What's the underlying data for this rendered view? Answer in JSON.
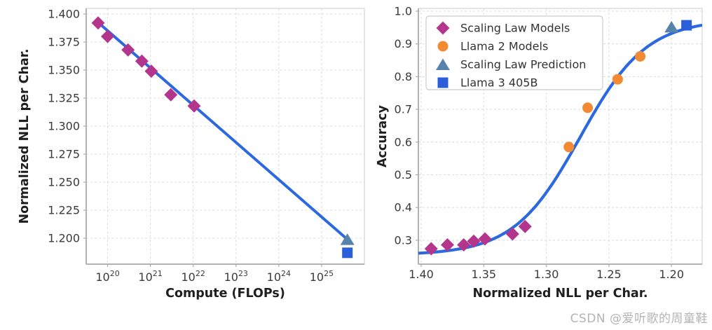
{
  "watermark": "CSDN @爱听歌的周童鞋",
  "colors": {
    "scaling_law_models": "#b3368c",
    "llama2_models": "#f18a33",
    "scaling_law_prediction": "#5782ab",
    "llama3_405b": "#2b5fd9",
    "fit_line": "#2c68df",
    "grid": "#dedede",
    "spine": "#aaaaaa",
    "border": "#d4d4d4",
    "tick_text": "#3a3a3a",
    "axis_label_text": "#1f1f1f",
    "legend_text": "#333333",
    "legend_border": "#cccccc"
  },
  "chart_data": [
    {
      "id": "left",
      "type": "scatter",
      "title": "",
      "xlabel": "Compute (FLOPs)",
      "ylabel": "Normalized NLL per Char.",
      "xscale": "log",
      "xlim_log10": [
        19.5,
        26.0
      ],
      "ylim": [
        1.177,
        1.405
      ],
      "grid": true,
      "x_ticks": [
        {
          "value": 1e+20,
          "label": "10^20"
        },
        {
          "value": 1e+21,
          "label": "10^21"
        },
        {
          "value": 1e+22,
          "label": "10^22"
        },
        {
          "value": 1e+23,
          "label": "10^23"
        },
        {
          "value": 1e+24,
          "label": "10^24"
        },
        {
          "value": 1e+25,
          "label": "10^25"
        }
      ],
      "y_ticks": [
        {
          "value": 1.2,
          "label": "1.200"
        },
        {
          "value": 1.225,
          "label": "1.225"
        },
        {
          "value": 1.25,
          "label": "1.250"
        },
        {
          "value": 1.275,
          "label": "1.275"
        },
        {
          "value": 1.3,
          "label": "1.300"
        },
        {
          "value": 1.325,
          "label": "1.325"
        },
        {
          "value": 1.35,
          "label": "1.350"
        },
        {
          "value": 1.375,
          "label": "1.375"
        },
        {
          "value": 1.4,
          "label": "1.400"
        }
      ],
      "line_series": {
        "name": "scaling-law-fit-line",
        "color": "#2c68df",
        "points": [
          [
            6e+19,
            1.3925
          ],
          [
            4e+25,
            1.199
          ]
        ]
      },
      "series": [
        {
          "name": "Scaling Law Models",
          "marker": "diamond",
          "color": "#b3368c",
          "points": [
            [
              6e+19,
              1.392
            ],
            [
              1e+20,
              1.38
            ],
            [
              3e+20,
              1.368
            ],
            [
              6.3e+20,
              1.358
            ],
            [
              1.05e+21,
              1.349
            ],
            [
              3e+21,
              1.328
            ],
            [
              1.05e+22,
              1.318
            ]
          ]
        },
        {
          "name": "Scaling Law Prediction",
          "marker": "triangle",
          "color": "#5782ab",
          "points": [
            [
              4e+25,
              1.199
            ]
          ]
        },
        {
          "name": "Llama 3 405B",
          "marker": "square",
          "color": "#2b5fd9",
          "points": [
            [
              4e+25,
              1.187
            ]
          ]
        }
      ]
    },
    {
      "id": "right",
      "type": "scatter",
      "title": "",
      "xlabel": "Normalized NLL per Char.",
      "ylabel": "Accuracy",
      "xscale": "linear",
      "x_reversed": true,
      "xlim": [
        1.4022,
        1.1755
      ],
      "ylim": [
        0.227,
        1.0086
      ],
      "grid": true,
      "x_ticks": [
        {
          "value": 1.4,
          "label": "1.40"
        },
        {
          "value": 1.35,
          "label": "1.35"
        },
        {
          "value": 1.3,
          "label": "1.30"
        },
        {
          "value": 1.25,
          "label": "1.25"
        },
        {
          "value": 1.2,
          "label": "1.20"
        }
      ],
      "y_ticks": [
        {
          "value": 0.3,
          "label": "0.3"
        },
        {
          "value": 0.4,
          "label": "0.4"
        },
        {
          "value": 0.5,
          "label": "0.5"
        },
        {
          "value": 0.6,
          "label": "0.6"
        },
        {
          "value": 0.7,
          "label": "0.7"
        },
        {
          "value": 0.8,
          "label": "0.8"
        },
        {
          "value": 0.9,
          "label": "0.9"
        },
        {
          "value": 1.0,
          "label": "1.0"
        }
      ],
      "sigmoid_fit": {
        "low": 0.255,
        "high": 0.975,
        "midpoint": 1.273,
        "k": 0.0265,
        "color": "#2c68df"
      },
      "series": [
        {
          "name": "Scaling Law Models",
          "marker": "diamond",
          "color": "#b3368c",
          "points": [
            [
              1.392,
              0.274
            ],
            [
              1.379,
              0.286
            ],
            [
              1.366,
              0.286
            ],
            [
              1.358,
              0.297
            ],
            [
              1.349,
              0.304
            ],
            [
              1.327,
              0.319
            ],
            [
              1.317,
              0.342
            ]
          ]
        },
        {
          "name": "Llama 2 Models",
          "marker": "circle",
          "color": "#f18a33",
          "points": [
            [
              1.282,
              0.585
            ],
            [
              1.267,
              0.705
            ],
            [
              1.243,
              0.792
            ],
            [
              1.225,
              0.862
            ]
          ]
        },
        {
          "name": "Scaling Law Prediction",
          "marker": "triangle",
          "color": "#5782ab",
          "points": [
            [
              1.2,
              0.952
            ]
          ]
        },
        {
          "name": "Llama 3 405B",
          "marker": "square",
          "color": "#2b5fd9",
          "points": [
            [
              1.188,
              0.957
            ]
          ]
        }
      ],
      "legend": {
        "position": "upper left",
        "items": [
          {
            "label": "Scaling Law Models",
            "marker": "diamond",
            "color": "#b3368c"
          },
          {
            "label": "Llama 2 Models",
            "marker": "circle",
            "color": "#f18a33"
          },
          {
            "label": "Scaling Law Prediction",
            "marker": "triangle",
            "color": "#5782ab"
          },
          {
            "label": "Llama 3 405B",
            "marker": "square",
            "color": "#2b5fd9"
          }
        ]
      }
    }
  ]
}
